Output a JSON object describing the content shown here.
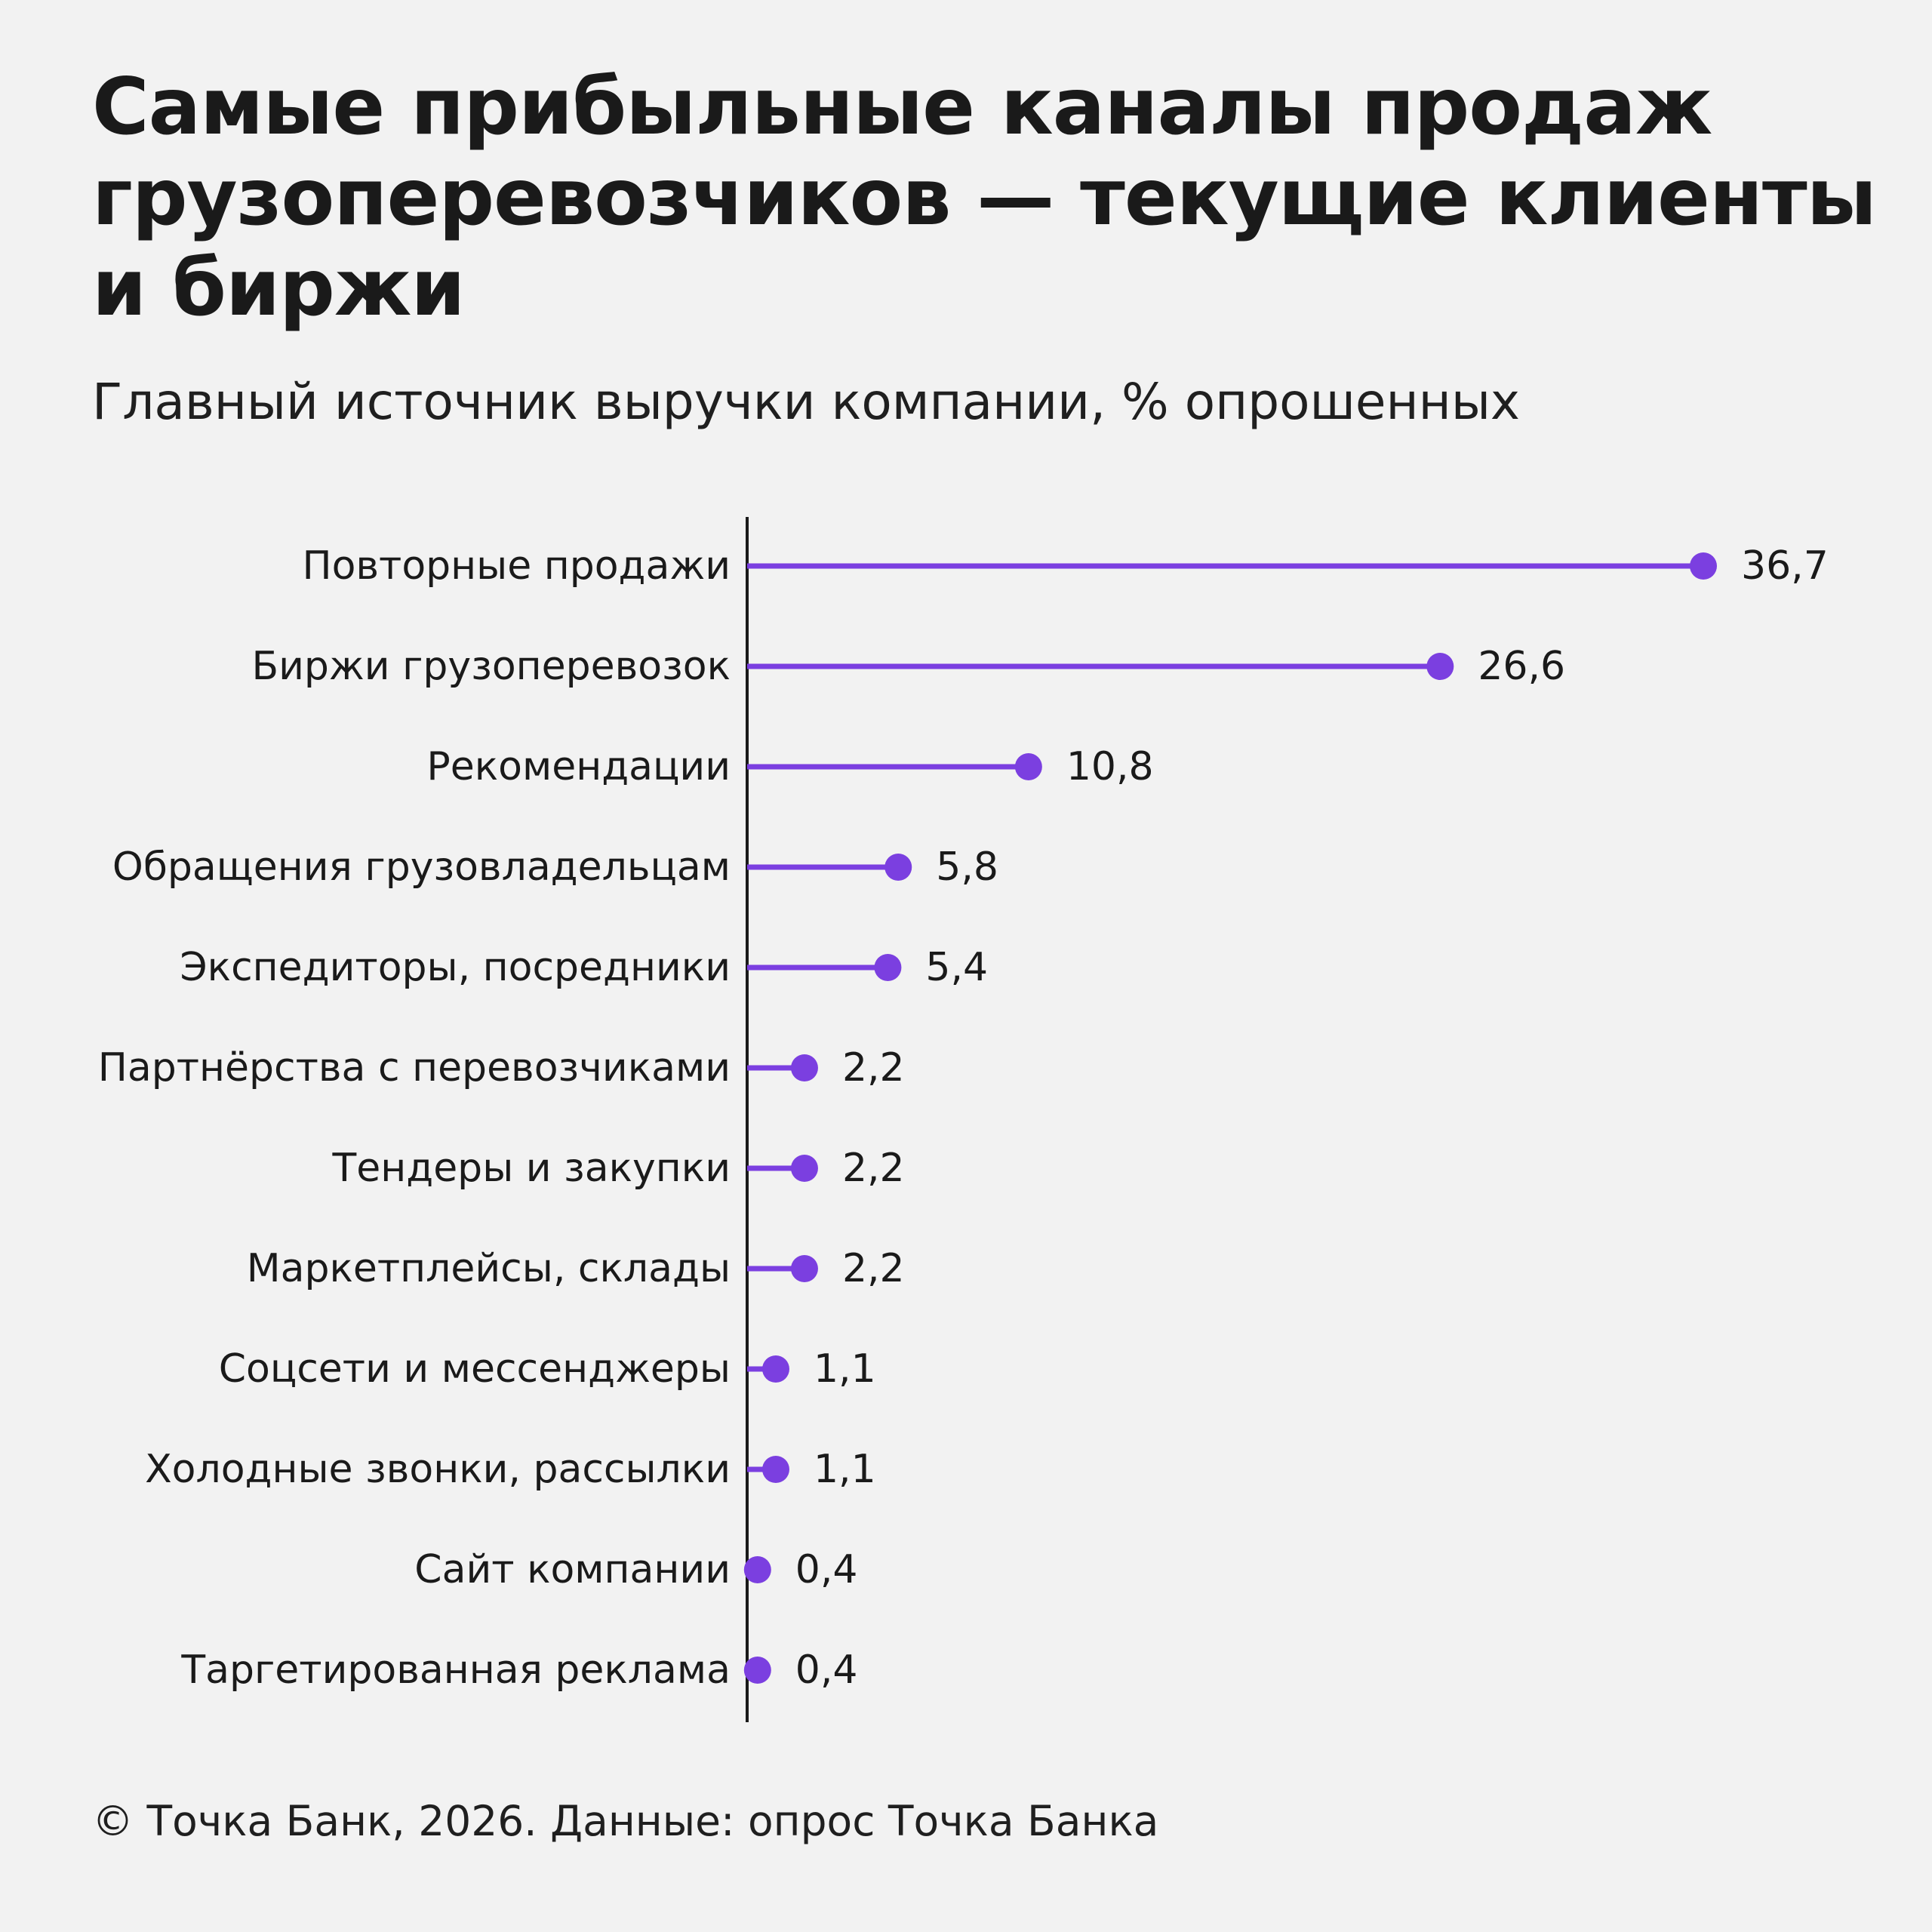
{
  "title": "Самые прибыльные каналы продаж грузоперевозчиков — текущие клиенты и биржи",
  "subtitle": "Главный источник выручки компании, % опрошенных",
  "footer": "© Точка Банк, 2026. Данные: опрос Точка Банка",
  "colors": {
    "accent": "#7b3fe0",
    "axis": "#1a1a1a",
    "text": "#1a1a1a",
    "background": "#f2f2f2"
  },
  "chart_data": {
    "type": "lollipop",
    "title": "Самые прибыльные каналы продаж грузоперевозчиков — текущие клиенты и биржи",
    "subtitle": "Главный источник выручки компании, % опрошенных",
    "orientation": "horizontal",
    "categories": [
      "Повторные продажи",
      "Биржи грузоперевозок",
      "Рекомендации",
      "Обращения грузовладельцам",
      "Экспедиторы, посредники",
      "Партнёрства с перевозчиками",
      "Тендеры и закупки",
      "Маркетплейсы, склады",
      "Соцсети и мессенджеры",
      "Холодные звонки, рассылки",
      "Сайт компании",
      "Таргетированная реклама"
    ],
    "values": [
      36.7,
      26.6,
      10.8,
      5.8,
      5.4,
      2.2,
      2.2,
      2.2,
      1.1,
      1.1,
      0.4,
      0.4
    ],
    "value_labels": [
      "36,7",
      "26,6",
      "10,8",
      "5,8",
      "5,4",
      "2,2",
      "2,2",
      "2,2",
      "1,1",
      "1,1",
      "0,4",
      "0,4"
    ],
    "xlim": [
      0,
      36.7
    ],
    "grid": false,
    "legend": "none"
  }
}
